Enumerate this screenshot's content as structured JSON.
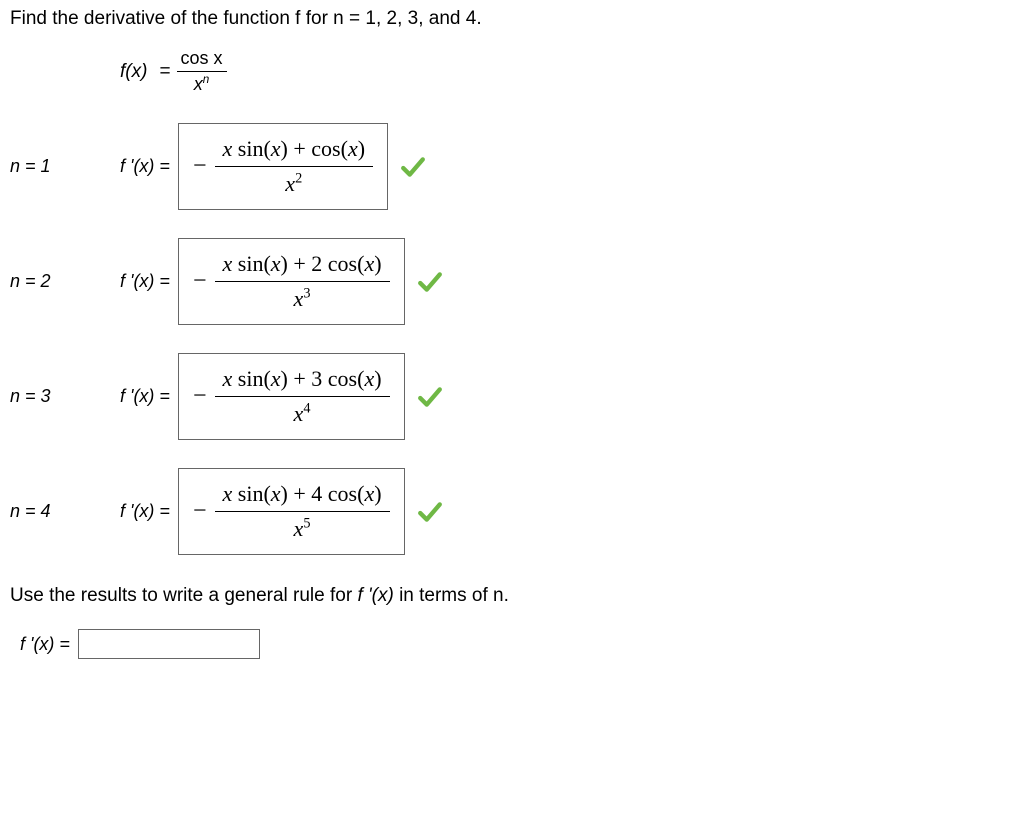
{
  "question": {
    "prompt": "Find the derivative of the function f for n = 1, 2, 3, and 4.",
    "followup_prefix": "Use the results to write a general rule for  ",
    "followup_func": "f '(x)",
    "followup_suffix": "  in terms of n."
  },
  "definition": {
    "lhs": "f(x)",
    "eq": "=",
    "numerator": "cos x",
    "denominator_base": "x",
    "denominator_exp": "n"
  },
  "rows": [
    {
      "n_label": "n = 1",
      "fprime_label": "f '(x) =",
      "negative": true,
      "numerator": "x sin(x) + cos(x)",
      "denom_base": "x",
      "denom_exp": "2",
      "correct": true
    },
    {
      "n_label": "n = 2",
      "fprime_label": "f '(x) =",
      "negative": true,
      "numerator": "x sin(x) + 2 cos(x)",
      "denom_base": "x",
      "denom_exp": "3",
      "correct": true
    },
    {
      "n_label": "n = 3",
      "fprime_label": "f '(x) =",
      "negative": true,
      "numerator": "x sin(x) + 3 cos(x)",
      "denom_base": "x",
      "denom_exp": "4",
      "correct": true
    },
    {
      "n_label": "n = 4",
      "fprime_label": "f '(x) =",
      "negative": true,
      "numerator": "x sin(x) + 4 cos(x)",
      "denom_base": "x",
      "denom_exp": "5",
      "correct": true
    }
  ],
  "final": {
    "label": "f '(x) ="
  },
  "style": {
    "check_color": "#6fb845",
    "box_border": "#666666",
    "text_color": "#000000",
    "body_font_size": 18,
    "serif_font": "Times New Roman",
    "sans_font": "Verdana"
  }
}
